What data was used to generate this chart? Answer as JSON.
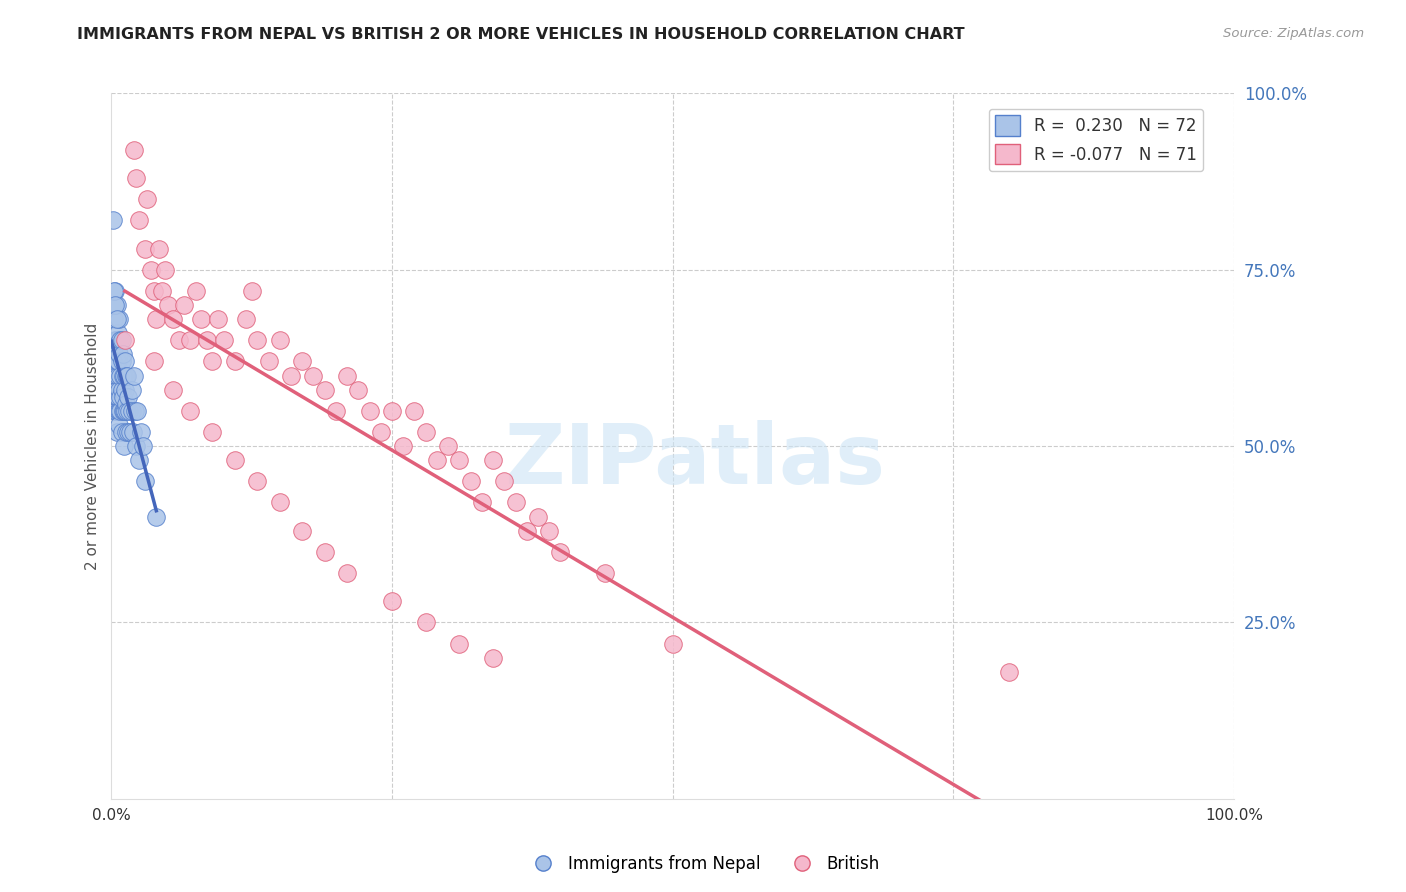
{
  "title": "IMMIGRANTS FROM NEPAL VS BRITISH 2 OR MORE VEHICLES IN HOUSEHOLD CORRELATION CHART",
  "source_text": "Source: ZipAtlas.com",
  "ylabel": "2 or more Vehicles in Household",
  "xlim": [
    0.0,
    1.0
  ],
  "ylim": [
    0.0,
    1.0
  ],
  "background_color": "#ffffff",
  "nepal_color": "#aac4e8",
  "nepal_edge_color": "#5580cc",
  "british_color": "#f5b8cc",
  "british_edge_color": "#e0607a",
  "nepal_line_color": "#4466bb",
  "british_line_color": "#e0607a",
  "R_nepal": 0.23,
  "N_nepal": 72,
  "R_british": -0.077,
  "N_british": 71,
  "watermark_text": "ZIPatlas",
  "watermark_color": "#cce4f5",
  "nepal_x": [
    0.001,
    0.002,
    0.002,
    0.002,
    0.003,
    0.003,
    0.003,
    0.003,
    0.004,
    0.004,
    0.004,
    0.004,
    0.004,
    0.005,
    0.005,
    0.005,
    0.005,
    0.005,
    0.005,
    0.006,
    0.006,
    0.006,
    0.006,
    0.006,
    0.007,
    0.007,
    0.007,
    0.007,
    0.007,
    0.008,
    0.008,
    0.008,
    0.008,
    0.009,
    0.009,
    0.009,
    0.009,
    0.01,
    0.01,
    0.01,
    0.01,
    0.011,
    0.011,
    0.011,
    0.012,
    0.012,
    0.012,
    0.013,
    0.013,
    0.013,
    0.014,
    0.014,
    0.015,
    0.015,
    0.016,
    0.017,
    0.018,
    0.018,
    0.019,
    0.02,
    0.021,
    0.022,
    0.023,
    0.025,
    0.026,
    0.028,
    0.03,
    0.001,
    0.002,
    0.003,
    0.005,
    0.04
  ],
  "nepal_y": [
    0.62,
    0.58,
    0.64,
    0.68,
    0.55,
    0.6,
    0.65,
    0.72,
    0.58,
    0.61,
    0.55,
    0.6,
    0.65,
    0.52,
    0.57,
    0.62,
    0.58,
    0.65,
    0.7,
    0.55,
    0.6,
    0.57,
    0.62,
    0.66,
    0.55,
    0.53,
    0.58,
    0.63,
    0.68,
    0.55,
    0.57,
    0.6,
    0.65,
    0.52,
    0.58,
    0.62,
    0.65,
    0.55,
    0.57,
    0.6,
    0.63,
    0.5,
    0.55,
    0.6,
    0.55,
    0.58,
    0.62,
    0.52,
    0.56,
    0.6,
    0.55,
    0.6,
    0.52,
    0.57,
    0.55,
    0.52,
    0.55,
    0.58,
    0.52,
    0.6,
    0.55,
    0.5,
    0.55,
    0.48,
    0.52,
    0.5,
    0.45,
    0.82,
    0.72,
    0.7,
    0.68,
    0.4
  ],
  "british_x": [
    0.012,
    0.02,
    0.022,
    0.025,
    0.03,
    0.032,
    0.035,
    0.038,
    0.04,
    0.042,
    0.045,
    0.048,
    0.05,
    0.055,
    0.06,
    0.065,
    0.07,
    0.075,
    0.08,
    0.085,
    0.09,
    0.095,
    0.1,
    0.11,
    0.12,
    0.125,
    0.13,
    0.14,
    0.15,
    0.16,
    0.17,
    0.18,
    0.19,
    0.2,
    0.21,
    0.22,
    0.23,
    0.24,
    0.25,
    0.26,
    0.27,
    0.28,
    0.29,
    0.3,
    0.31,
    0.32,
    0.33,
    0.34,
    0.35,
    0.36,
    0.37,
    0.38,
    0.39,
    0.4,
    0.038,
    0.055,
    0.07,
    0.09,
    0.11,
    0.13,
    0.15,
    0.17,
    0.19,
    0.21,
    0.25,
    0.28,
    0.31,
    0.34,
    0.8,
    0.5,
    0.44
  ],
  "british_y": [
    0.65,
    0.92,
    0.88,
    0.82,
    0.78,
    0.85,
    0.75,
    0.72,
    0.68,
    0.78,
    0.72,
    0.75,
    0.7,
    0.68,
    0.65,
    0.7,
    0.65,
    0.72,
    0.68,
    0.65,
    0.62,
    0.68,
    0.65,
    0.62,
    0.68,
    0.72,
    0.65,
    0.62,
    0.65,
    0.6,
    0.62,
    0.6,
    0.58,
    0.55,
    0.6,
    0.58,
    0.55,
    0.52,
    0.55,
    0.5,
    0.55,
    0.52,
    0.48,
    0.5,
    0.48,
    0.45,
    0.42,
    0.48,
    0.45,
    0.42,
    0.38,
    0.4,
    0.38,
    0.35,
    0.62,
    0.58,
    0.55,
    0.52,
    0.48,
    0.45,
    0.42,
    0.38,
    0.35,
    0.32,
    0.28,
    0.25,
    0.22,
    0.2,
    0.18,
    0.22,
    0.32
  ]
}
